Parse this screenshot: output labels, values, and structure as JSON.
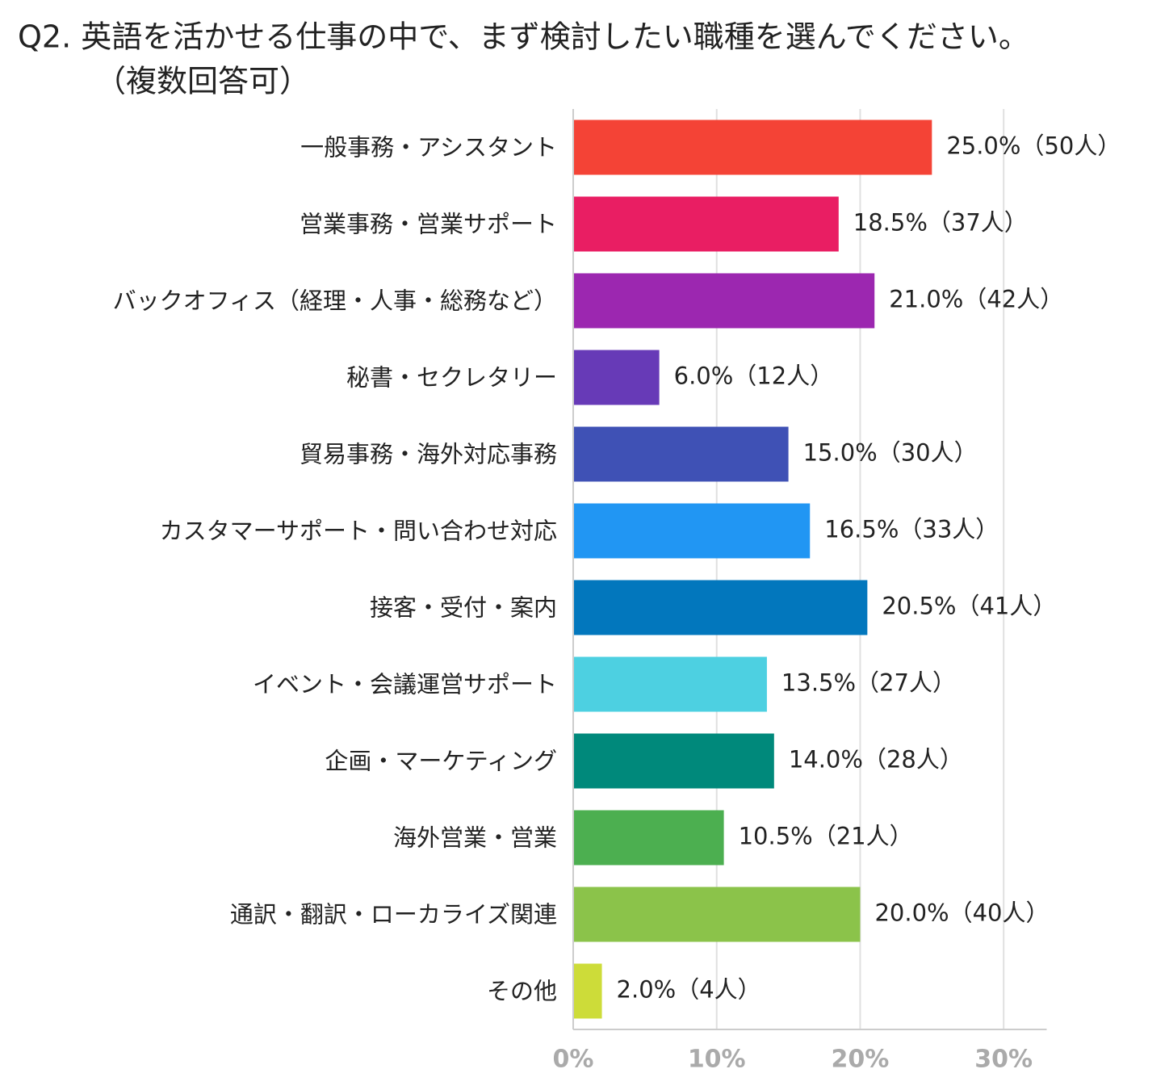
{
  "chart_data": {
    "type": "bar",
    "orientation": "horizontal",
    "title": "Q2. 英語を活かせる仕事の中で、まず検討したい職種を選んでください。",
    "subtitle": "（複数回答可）",
    "categories": [
      "一般事務・アシスタント",
      "営業事務・営業サポート",
      "バックオフィス（経理・人事・総務など）",
      "秘書・セクレタリー",
      "貿易事務・海外対応事務",
      "カスタマーサポート・問い合わせ対応",
      "接客・受付・案内",
      "イベント・会議運営サポート",
      "企画・マーケティング",
      "海外営業・営業",
      "通訳・翻訳・ローカライズ関連",
      "その他"
    ],
    "values": [
      25.0,
      18.5,
      21.0,
      6.0,
      15.0,
      16.5,
      20.5,
      13.5,
      14.0,
      10.5,
      20.0,
      2.0
    ],
    "value_labels": [
      "25.0%（50人）",
      "18.5%（37人）",
      "21.0%（42人）",
      "6.0%（12人）",
      "15.0%（30人）",
      "16.5%（33人）",
      "20.5%（41人）",
      "13.5%（27人）",
      "14.0%（28人）",
      "10.5%（21人）",
      "20.0%（40人）",
      "2.0%（4人）"
    ],
    "colors": [
      "#f44336",
      "#e91e63",
      "#9c27b0",
      "#673ab7",
      "#3f51b5",
      "#2196f3",
      "#0277bd",
      "#4dd0e1",
      "#00897b",
      "#4caf50",
      "#8bc34a",
      "#cddc39"
    ],
    "xlim": [
      0,
      33
    ],
    "xticks": [
      {
        "value": 0,
        "label": "0%"
      },
      {
        "value": 10,
        "label": "10%"
      },
      {
        "value": 20,
        "label": "20%"
      },
      {
        "value": 30,
        "label": "30%"
      }
    ],
    "grid": true
  }
}
